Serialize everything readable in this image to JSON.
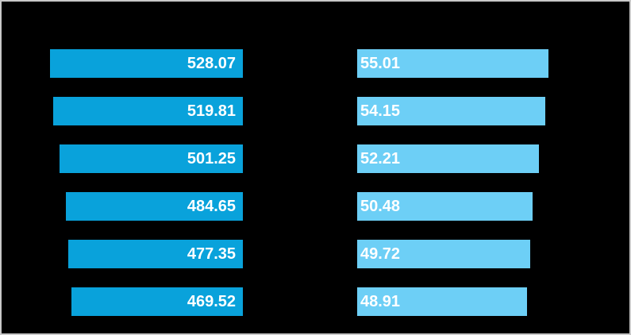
{
  "window": {
    "background_color": "#000000",
    "frame_border_color": "#c8c8c8"
  },
  "chart_data": {
    "type": "bar",
    "orientation": "horizontal",
    "layout_hint": "two-panel comparison chart on black background; left panel bars are right-aligned (grow leftward), right panel bars are left-aligned (grow rightward); no visible axes, gridlines, titles or category labels; value labels printed inside bars in bold white",
    "rows": 6,
    "series": [
      {
        "name": "left-panel-series",
        "bar_color": "#09a2db",
        "label_color": "#ffffff",
        "label_position": "inside-right",
        "values": [
          528.07,
          519.81,
          501.25,
          484.65,
          477.35,
          469.52
        ],
        "value_labels": [
          "528.07",
          "519.81",
          "501.25",
          "484.65",
          "477.35",
          "469.52"
        ]
      },
      {
        "name": "right-panel-series",
        "bar_color": "#6dcff6",
        "label_color": "#ffffff",
        "label_position": "inside-left",
        "values": [
          55.01,
          54.15,
          52.21,
          50.48,
          49.72,
          48.91
        ],
        "value_labels": [
          "55.01",
          "54.15",
          "52.21",
          "50.48",
          "49.72",
          "48.91"
        ]
      }
    ],
    "axis_min": 0,
    "grid": false,
    "legend": false,
    "background": "#000000"
  }
}
